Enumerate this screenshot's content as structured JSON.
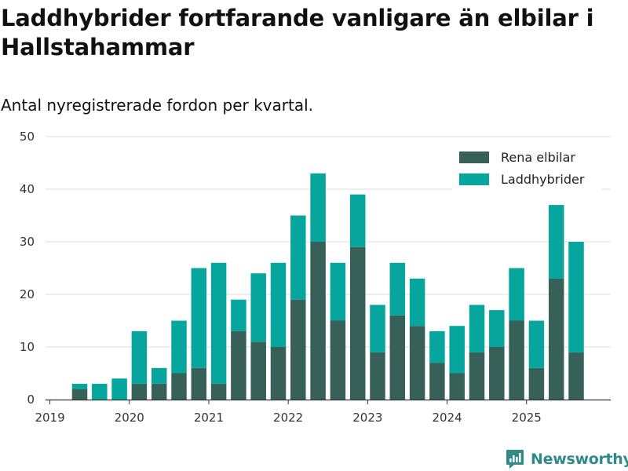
{
  "title": "Laddhybrider fortfarande vanligare än elbilar i Hallstahammar",
  "subtitle": "Antal nyregistrerade fordon per kvartal.",
  "brand": {
    "name": "Newsworthy",
    "icon": "newsworthy-logo-icon"
  },
  "colors": {
    "rena_elbilar": "#376059",
    "laddhybrider": "#06a59d",
    "grid": "#dddddd",
    "axis": "#333333",
    "brand": "#2f8b8a"
  },
  "chart_data": {
    "type": "bar",
    "stacked": true,
    "title": "Laddhybrider fortfarande vanligare än elbilar i Hallstahammar",
    "subtitle": "Antal nyregistrerade fordon per kvartal.",
    "xlabel": "",
    "ylabel": "",
    "ylim": [
      0,
      50
    ],
    "yticks": [
      0,
      10,
      20,
      30,
      40,
      50
    ],
    "xticks": [
      "2019",
      "2020",
      "2021",
      "2022",
      "2023",
      "2024",
      "2025"
    ],
    "grid": true,
    "legend_position": "top-right",
    "categories": [
      "2019 Q2",
      "2019 Q3",
      "2019 Q4",
      "2020 Q1",
      "2020 Q2",
      "2020 Q3",
      "2020 Q4",
      "2021 Q1",
      "2021 Q2",
      "2021 Q3",
      "2021 Q4",
      "2022 Q1",
      "2022 Q2",
      "2022 Q3",
      "2022 Q4",
      "2023 Q1",
      "2023 Q2",
      "2023 Q3",
      "2023 Q4",
      "2024 Q1",
      "2024 Q2",
      "2024 Q3",
      "2024 Q4",
      "2025 Q1",
      "2025 Q2",
      "2025 Q3"
    ],
    "series": [
      {
        "name": "Rena elbilar",
        "values": [
          2,
          0,
          0,
          3,
          3,
          5,
          6,
          3,
          13,
          11,
          10,
          19,
          30,
          15,
          29,
          9,
          16,
          14,
          7,
          5,
          9,
          10,
          15,
          6,
          23,
          9
        ]
      },
      {
        "name": "Laddhybrider",
        "values": [
          1,
          3,
          4,
          10,
          3,
          10,
          19,
          23,
          6,
          13,
          16,
          16,
          13,
          11,
          10,
          9,
          10,
          9,
          6,
          9,
          9,
          7,
          10,
          9,
          14,
          21
        ]
      }
    ]
  }
}
